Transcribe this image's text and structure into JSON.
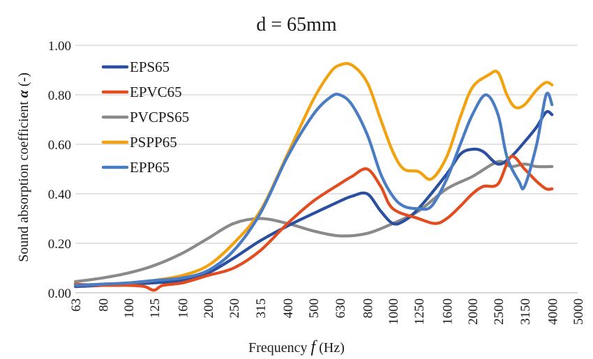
{
  "chart_data": {
    "type": "line",
    "title": "d = 65mm",
    "xlabel": "Frequency f (Hz)",
    "xlabel_parts": {
      "before": "Frequency ",
      "italic": "f",
      "after": " (Hz)"
    },
    "ylabel": "Sound absorption coefficient α (-)",
    "ylabel_parts": {
      "before": "Sound absorption coefficient ",
      "symbol": "α",
      "after": " (-)"
    },
    "x_scale": "log",
    "xlim": [
      63,
      5000
    ],
    "ylim": [
      0,
      1
    ],
    "x_ticks": [
      63,
      80,
      100,
      125,
      160,
      200,
      250,
      315,
      400,
      500,
      630,
      800,
      1000,
      1250,
      1600,
      2000,
      2500,
      3150,
      4000,
      5000
    ],
    "x_tick_labels": [
      "63",
      "80",
      "100",
      "125",
      "160",
      "200",
      "250",
      "315",
      "400",
      "500",
      "630",
      "800",
      "1000",
      "1250",
      "1600",
      "2000",
      "2500",
      "3150",
      "4000",
      "5000"
    ],
    "y_ticks": [
      0,
      0.2,
      0.4,
      0.6,
      0.8,
      1.0
    ],
    "y_tick_labels": [
      "0.00",
      "0.20",
      "0.40",
      "0.60",
      "0.80",
      "1.00"
    ],
    "grid": "horizontal",
    "legend_position": "top-left",
    "series": [
      {
        "name": "EPS65",
        "color": "#2a4ea0",
        "x": [
          63,
          80,
          100,
          125,
          160,
          200,
          250,
          315,
          400,
          500,
          630,
          700,
          800,
          900,
          1000,
          1100,
          1250,
          1600,
          1800,
          2000,
          2200,
          2500,
          2800,
          3150,
          3500,
          3800,
          4000
        ],
        "y": [
          0.025,
          0.03,
          0.035,
          0.04,
          0.05,
          0.08,
          0.14,
          0.21,
          0.27,
          0.32,
          0.37,
          0.39,
          0.4,
          0.33,
          0.28,
          0.29,
          0.34,
          0.48,
          0.56,
          0.58,
          0.57,
          0.52,
          0.55,
          0.61,
          0.67,
          0.73,
          0.72
        ]
      },
      {
        "name": "EPVC65",
        "color": "#e34c1e",
        "x": [
          63,
          80,
          100,
          115,
          125,
          135,
          160,
          200,
          250,
          315,
          400,
          500,
          630,
          700,
          800,
          900,
          1000,
          1250,
          1450,
          1600,
          1800,
          2000,
          2200,
          2500,
          2800,
          3150,
          3500,
          3800,
          4000
        ],
        "y": [
          0.035,
          0.03,
          0.03,
          0.025,
          0.01,
          0.03,
          0.04,
          0.07,
          0.1,
          0.17,
          0.28,
          0.37,
          0.44,
          0.47,
          0.5,
          0.43,
          0.34,
          0.3,
          0.28,
          0.3,
          0.35,
          0.4,
          0.43,
          0.44,
          0.55,
          0.5,
          0.45,
          0.42,
          0.42
        ]
      },
      {
        "name": "PVCPS65",
        "color": "#8a8a8a",
        "x": [
          63,
          80,
          100,
          125,
          160,
          200,
          250,
          315,
          400,
          500,
          630,
          800,
          1000,
          1250,
          1600,
          2000,
          2500,
          2800,
          3150,
          3500,
          4000
        ],
        "y": [
          0.045,
          0.06,
          0.08,
          0.11,
          0.16,
          0.22,
          0.28,
          0.3,
          0.28,
          0.25,
          0.23,
          0.24,
          0.28,
          0.33,
          0.42,
          0.47,
          0.53,
          0.51,
          0.52,
          0.51,
          0.51
        ]
      },
      {
        "name": "PSPP65",
        "color": "#f2a20e",
        "x": [
          63,
          80,
          100,
          125,
          160,
          200,
          250,
          315,
          400,
          500,
          580,
          630,
          700,
          800,
          900,
          1000,
          1100,
          1250,
          1400,
          1600,
          1800,
          2000,
          2300,
          2500,
          2700,
          2900,
          3150,
          3500,
          3800,
          4000
        ],
        "y": [
          0.03,
          0.035,
          0.04,
          0.05,
          0.07,
          0.11,
          0.2,
          0.33,
          0.56,
          0.78,
          0.89,
          0.92,
          0.92,
          0.85,
          0.7,
          0.57,
          0.5,
          0.49,
          0.46,
          0.55,
          0.71,
          0.83,
          0.88,
          0.89,
          0.8,
          0.75,
          0.76,
          0.82,
          0.85,
          0.84
        ]
      },
      {
        "name": "EPP65",
        "color": "#4a7cc4",
        "x": [
          63,
          80,
          100,
          125,
          160,
          200,
          250,
          315,
          400,
          500,
          580,
          630,
          700,
          800,
          900,
          1000,
          1100,
          1250,
          1400,
          1600,
          1800,
          2000,
          2250,
          2500,
          2700,
          3000,
          3150,
          3500,
          3800,
          4000
        ],
        "y": [
          0.03,
          0.035,
          0.04,
          0.05,
          0.06,
          0.09,
          0.17,
          0.32,
          0.55,
          0.72,
          0.79,
          0.8,
          0.76,
          0.64,
          0.48,
          0.39,
          0.35,
          0.34,
          0.35,
          0.46,
          0.6,
          0.72,
          0.8,
          0.72,
          0.55,
          0.45,
          0.43,
          0.6,
          0.8,
          0.76
        ]
      }
    ]
  }
}
